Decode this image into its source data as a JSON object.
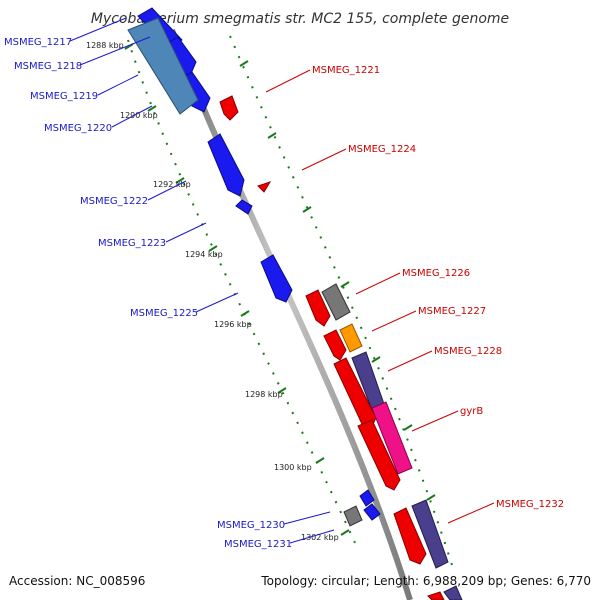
{
  "title": "Mycobacterium smegmatis str. MC2 155, complete genome",
  "footer": {
    "accession": "Accession: NC_008596",
    "topology": "Topology: circular; Length: 6,988,209 bp; Genes: 6,770"
  },
  "colors": {
    "backbone": "#8f8f8f",
    "tick": "#1a7a1a",
    "left_label": "#1a1acc",
    "right_label": "#cc0000",
    "blue_gene": "#1a1aee",
    "steelblue_gene": "#4f86b8",
    "red_gene": "#ee0000",
    "gray_gene": "#777777",
    "orange_gene": "#ff9900",
    "slate_gene": "#4a3f8c",
    "pink_gene": "#ee1188"
  },
  "kbp_marks": [
    "1288 kbp",
    "1290 kbp",
    "1292 kbp",
    "1294 kbp",
    "1296 kbp",
    "1298 kbp",
    "1300 kbp",
    "1302 kbp"
  ],
  "left_labels": [
    "MSMEG_1217",
    "MSMEG_1218",
    "MSMEG_1219",
    "MSMEG_1220",
    "MSMEG_1222",
    "MSMEG_1223",
    "MSMEG_1225",
    "MSMEG_1230",
    "MSMEG_1231"
  ],
  "right_labels": [
    "MSMEG_1221",
    "MSMEG_1224",
    "MSMEG_1226",
    "MSMEG_1227",
    "MSMEG_1228",
    "gyrB",
    "MSMEG_1232"
  ]
}
